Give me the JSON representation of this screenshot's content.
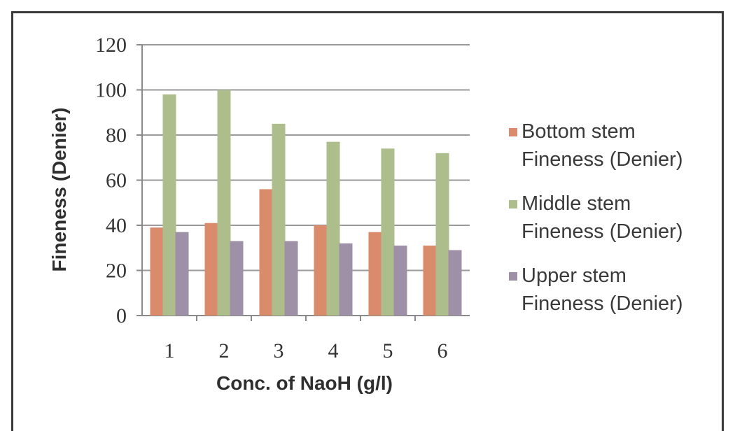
{
  "chart_data": {
    "type": "bar",
    "title": "",
    "xlabel": "Conc. of  NaoH (g/l)",
    "ylabel": "Fineness (Denier)",
    "categories": [
      "1",
      "2",
      "3",
      "4",
      "5",
      "6"
    ],
    "ylim": [
      0,
      120
    ],
    "yticks": [
      "0",
      "20",
      "40",
      "60",
      "80",
      "100",
      "120"
    ],
    "grid": true,
    "legend_position": "right",
    "series": [
      {
        "name_line1": "Bottom stem",
        "name_line2": "Fineness (Denier)",
        "color": "#d98b6c",
        "values": [
          39,
          41,
          56,
          40,
          37,
          31
        ]
      },
      {
        "name_line1": "Middle stem",
        "name_line2": "Fineness (Denier)",
        "color": "#adbd8c",
        "values": [
          98,
          100,
          85,
          77,
          74,
          72
        ]
      },
      {
        "name_line1": "Upper stem",
        "name_line2": "Fineness (Denier)",
        "color": "#9e90a6",
        "values": [
          37,
          33,
          33,
          32,
          31,
          29
        ]
      }
    ]
  }
}
